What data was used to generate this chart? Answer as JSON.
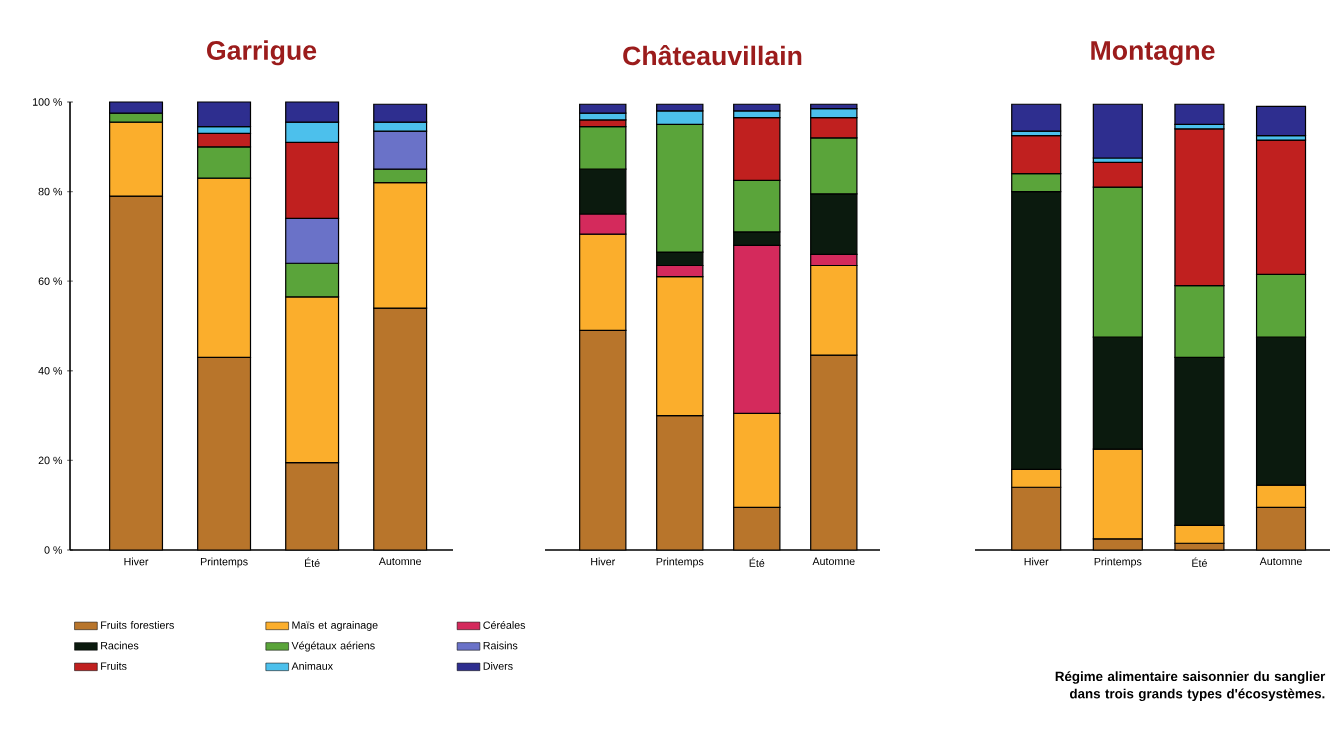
{
  "chart_data": [
    {
      "type": "bar",
      "stacked": true,
      "title": "Garrigue",
      "categories": [
        "Hiver",
        "Printemps",
        "Été",
        "Automne"
      ],
      "ylim": [
        0,
        100
      ],
      "yticks": [
        {
          "value": 0,
          "label": "0 %"
        },
        {
          "value": 20,
          "label": "20 %"
        },
        {
          "value": 40,
          "label": "40 %"
        },
        {
          "value": 60,
          "label": "60 %"
        },
        {
          "value": 80,
          "label": "80 %"
        },
        {
          "value": 100,
          "label": "100 %"
        }
      ],
      "legend": "bottom",
      "series": [
        {
          "name": "Fruits forestiers",
          "color": "#b8752b",
          "values": [
            79,
            43,
            19.5,
            54
          ]
        },
        {
          "name": "Maïs et agrainage",
          "color": "#fbae2c",
          "values": [
            16.5,
            40,
            37,
            28
          ]
        },
        {
          "name": "Céréales",
          "color": "#d42a5c",
          "values": [
            null,
            null,
            null,
            null
          ]
        },
        {
          "name": "Racines",
          "color": "#0b1a0e",
          "values": [
            null,
            null,
            null,
            null
          ]
        },
        {
          "name": "Végétaux aériens",
          "color": "#5aa43a",
          "values": [
            2,
            7,
            7.5,
            3
          ]
        },
        {
          "name": "Raisins",
          "color": "#6a72c8",
          "values": [
            null,
            null,
            10,
            8.5
          ]
        },
        {
          "name": "Fruits",
          "color": "#c0201f",
          "values": [
            null,
            3,
            17,
            null
          ]
        },
        {
          "name": "Animaux",
          "color": "#4cc0ec",
          "values": [
            null,
            1.5,
            4.5,
            2
          ]
        },
        {
          "name": "Divers",
          "color": "#2e2e8f",
          "values": [
            2.5,
            5.5,
            4.5,
            4
          ]
        }
      ]
    },
    {
      "type": "bar",
      "stacked": true,
      "title": "Châteauvillain",
      "categories": [
        "Hiver",
        "Printemps",
        "Été",
        "Automne"
      ],
      "ylim": [
        0,
        100
      ],
      "tick_labels": "x",
      "series": [
        {
          "color": "#b8752b",
          "values": [
            49,
            30,
            9.5,
            43.5
          ]
        },
        {
          "color": "#fbae2c",
          "values": [
            21.5,
            31,
            21,
            20
          ]
        },
        {
          "color": "#d42a5c",
          "values": [
            4.5,
            2.5,
            37.5,
            2.5
          ]
        },
        {
          "color": "#0b1a0e",
          "values": [
            10,
            3,
            3,
            13.5
          ]
        },
        {
          "color": "#5aa43a",
          "values": [
            9.5,
            28.5,
            11.5,
            12.5
          ]
        },
        {
          "color": "#c0201f",
          "values": [
            1.5,
            null,
            14,
            4.5
          ]
        },
        {
          "color": "#4cc0ec",
          "values": [
            1.5,
            3,
            1.5,
            2
          ]
        },
        {
          "color": "#2e2e8f",
          "values": [
            2,
            1.5,
            1.5,
            1
          ]
        }
      ]
    },
    {
      "type": "bar",
      "stacked": true,
      "title": "Montagne",
      "categories": [
        "Hiver",
        "Printemps",
        "Été",
        "Automne"
      ],
      "ylim": [
        0,
        100
      ],
      "tick_labels": "x",
      "annotations": [
        "Régime alimentaire saisonnier du sanglier dans trois grands types d'écosystèmes."
      ],
      "series": [
        {
          "color": "#b8752b",
          "values": [
            14,
            2.5,
            1.5,
            9.5
          ]
        },
        {
          "color": "#fbae2c",
          "values": [
            4,
            20,
            4,
            5
          ]
        },
        {
          "color": "#0b1a0e",
          "values": [
            62,
            25,
            37.5,
            33
          ]
        },
        {
          "color": "#5aa43a",
          "values": [
            4,
            33.5,
            16,
            14
          ]
        },
        {
          "color": "#c0201f",
          "values": [
            8.5,
            5.5,
            35,
            30
          ]
        },
        {
          "color": "#4cc0ec",
          "values": [
            1,
            1,
            1,
            1
          ]
        },
        {
          "color": "#2e2e8f",
          "values": [
            6,
            12,
            4.5,
            6.5
          ]
        }
      ]
    }
  ]
}
